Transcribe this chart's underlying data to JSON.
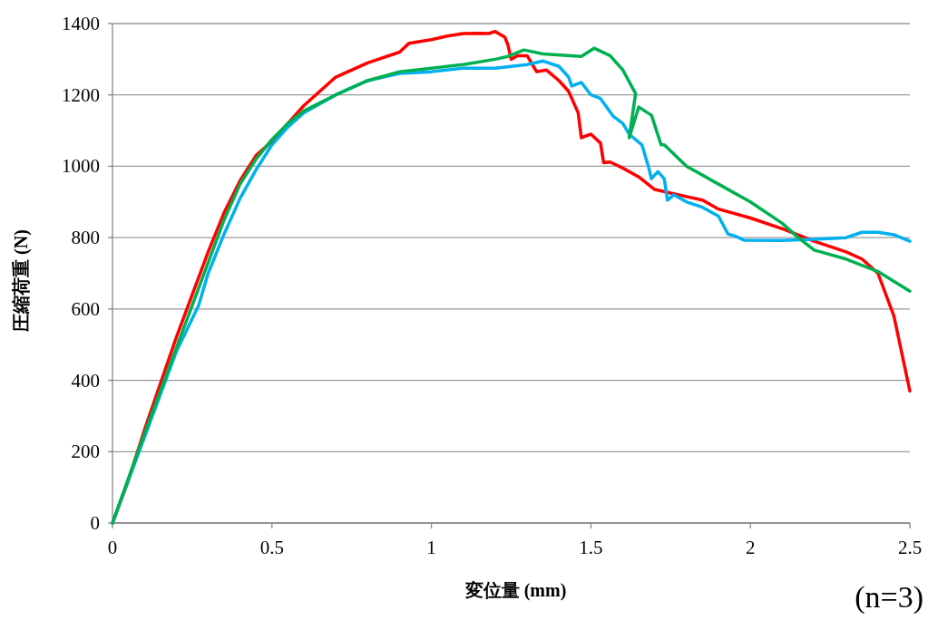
{
  "chart_data": {
    "type": "line",
    "xlabel": "変位量 (mm)",
    "ylabel": "圧縮荷重 (N)",
    "xlim": [
      0,
      2.5
    ],
    "xticks": [
      0,
      0.5,
      1,
      1.5,
      2,
      2.5
    ],
    "ylim": [
      0,
      1400
    ],
    "yticks": [
      0,
      200,
      400,
      600,
      800,
      1000,
      1200,
      1400
    ],
    "grid": "y",
    "marker": "none",
    "line_style": "solid",
    "annotations": [
      "(n=3)"
    ],
    "series": [
      {
        "color": "#ff0000",
        "x": [
          0,
          0.05,
          0.1,
          0.2,
          0.3,
          0.35,
          0.4,
          0.45,
          0.5,
          0.55,
          0.6,
          0.65,
          0.7,
          0.8,
          0.9,
          0.93,
          1.0,
          1.05,
          1.1,
          1.15,
          1.18,
          1.2,
          1.23,
          1.24,
          1.25,
          1.27,
          1.3,
          1.32,
          1.33,
          1.36,
          1.4,
          1.43,
          1.46,
          1.47,
          1.5,
          1.53,
          1.54,
          1.56,
          1.6,
          1.65,
          1.7,
          1.75,
          1.85,
          1.9,
          2.0,
          2.1,
          2.2,
          2.3,
          2.35,
          2.4,
          2.45,
          2.5
        ],
        "values": [
          0,
          120,
          260,
          520,
          760,
          870,
          960,
          1030,
          1070,
          1120,
          1170,
          1210,
          1250,
          1290,
          1320,
          1345,
          1355,
          1365,
          1372,
          1373,
          1372,
          1378,
          1362,
          1340,
          1300,
          1310,
          1310,
          1280,
          1265,
          1270,
          1240,
          1210,
          1150,
          1080,
          1090,
          1065,
          1010,
          1012,
          995,
          970,
          935,
          925,
          905,
          880,
          855,
          825,
          790,
          760,
          740,
          700,
          580,
          370
        ]
      },
      {
        "color": "#00b0f0",
        "x": [
          0,
          0.1,
          0.2,
          0.27,
          0.3,
          0.35,
          0.4,
          0.45,
          0.5,
          0.55,
          0.6,
          0.7,
          0.8,
          0.9,
          1.0,
          1.1,
          1.2,
          1.3,
          1.35,
          1.4,
          1.43,
          1.44,
          1.47,
          1.5,
          1.53,
          1.57,
          1.6,
          1.62,
          1.66,
          1.68,
          1.69,
          1.71,
          1.73,
          1.74,
          1.76,
          1.8,
          1.85,
          1.9,
          1.93,
          1.95,
          1.98,
          2.1,
          2.2,
          2.3,
          2.35,
          2.4,
          2.45,
          2.5
        ],
        "values": [
          0,
          240,
          480,
          610,
          700,
          810,
          910,
          990,
          1060,
          1110,
          1150,
          1200,
          1240,
          1260,
          1265,
          1275,
          1275,
          1285,
          1295,
          1280,
          1250,
          1225,
          1235,
          1200,
          1190,
          1140,
          1120,
          1090,
          1060,
          1000,
          965,
          985,
          965,
          905,
          920,
          900,
          885,
          860,
          810,
          805,
          793,
          792,
          795,
          800,
          815,
          815,
          808,
          790
        ]
      },
      {
        "color": "#00b050",
        "x": [
          0,
          0.1,
          0.2,
          0.3,
          0.35,
          0.4,
          0.45,
          0.5,
          0.55,
          0.6,
          0.7,
          0.8,
          0.9,
          1.0,
          1.1,
          1.2,
          1.24,
          1.29,
          1.35,
          1.47,
          1.51,
          1.56,
          1.6,
          1.64,
          1.62,
          1.65,
          1.69,
          1.72,
          1.73,
          1.8,
          1.9,
          2.0,
          2.1,
          2.15,
          2.2,
          2.3,
          2.4,
          2.5
        ],
        "values": [
          0,
          250,
          490,
          730,
          850,
          950,
          1020,
          1075,
          1120,
          1155,
          1200,
          1240,
          1265,
          1275,
          1285,
          1300,
          1308,
          1326,
          1315,
          1308,
          1331,
          1310,
          1270,
          1204,
          1080,
          1166,
          1143,
          1060,
          1060,
          1000,
          950,
          900,
          840,
          800,
          765,
          740,
          705,
          650
        ]
      }
    ]
  }
}
